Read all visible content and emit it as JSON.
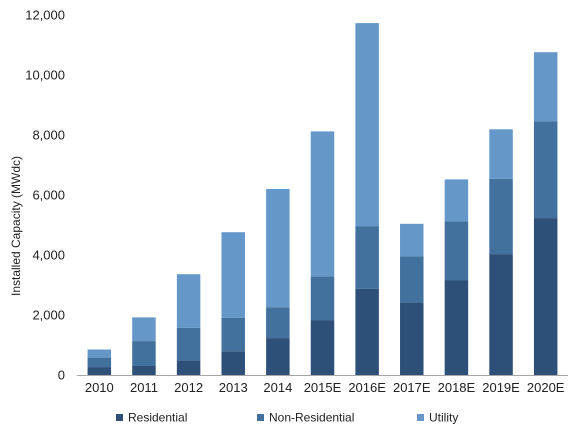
{
  "chart_data": {
    "type": "bar",
    "stacked": true,
    "title": "",
    "xlabel": "",
    "ylabel": "Installed Capacity (MWdc)",
    "ylim": [
      0,
      12000
    ],
    "yticks": [
      0,
      2000,
      4000,
      6000,
      8000,
      10000,
      12000
    ],
    "ytick_labels": [
      "0",
      "2,000",
      "4,000",
      "6,000",
      "8,000",
      "10,000",
      "12,000"
    ],
    "grid": false,
    "legend_position": "bottom",
    "categories": [
      "2010",
      "2011",
      "2012",
      "2013",
      "2014",
      "2015E",
      "2016E",
      "2017E",
      "2018E",
      "2019E",
      "2020E"
    ],
    "series": [
      {
        "name": "Residential",
        "color": "#2e5078",
        "values": [
          250,
          300,
          490,
          790,
          1230,
          1830,
          2870,
          2400,
          3150,
          4030,
          5230
        ]
      },
      {
        "name": "Non-Residential",
        "color": "#42719e",
        "values": [
          330,
          830,
          1080,
          1120,
          1030,
          1460,
          2080,
          1560,
          1970,
          2510,
          3230
        ]
      },
      {
        "name": "Utility",
        "color": "#6598c8",
        "values": [
          270,
          790,
          1790,
          2850,
          3940,
          4830,
          6780,
          1080,
          1400,
          1650,
          2300
        ]
      }
    ]
  }
}
